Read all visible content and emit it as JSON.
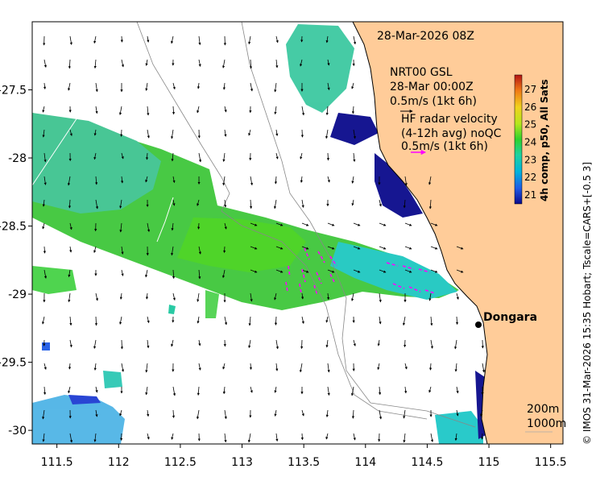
{
  "map": {
    "timestamp": "28-Mar-2026 08Z",
    "model_label": "NRT00 GSL",
    "model_time": "28-Mar 00:00Z",
    "model_scale": "0.5m/s (1kt 6h)",
    "hf_title": "HF radar velocity",
    "hf_sub": "(4-12h avg) noQC",
    "hf_scale": "0.5m/s (1kt 6h)",
    "place": "Dongara",
    "isobath_1": "200m",
    "isobath_2": "1000m",
    "credit": "© IMOS 31-Mar-2026 15:35 Hobart; Tscale=CARS+[-0.5 3]",
    "colors": {
      "land": "#ffcc99",
      "hf_arrow": "#ff00ff"
    }
  },
  "axes": {
    "x_ticks": [
      "111.5",
      "112",
      "112.5",
      "113",
      "113.5",
      "114",
      "114.5",
      "115",
      "115.5"
    ],
    "y_ticks": [
      "-27.5",
      "-28",
      "-28.5",
      "-29",
      "-29.5",
      "-30"
    ],
    "xlim": [
      111.3,
      115.6
    ],
    "ylim": [
      -30.1,
      -27.0
    ]
  },
  "colorbar": {
    "label": "4h comp, p50, All Sats",
    "ticks": [
      "27",
      "26",
      "25",
      "24",
      "23",
      "22",
      "21"
    ]
  }
}
